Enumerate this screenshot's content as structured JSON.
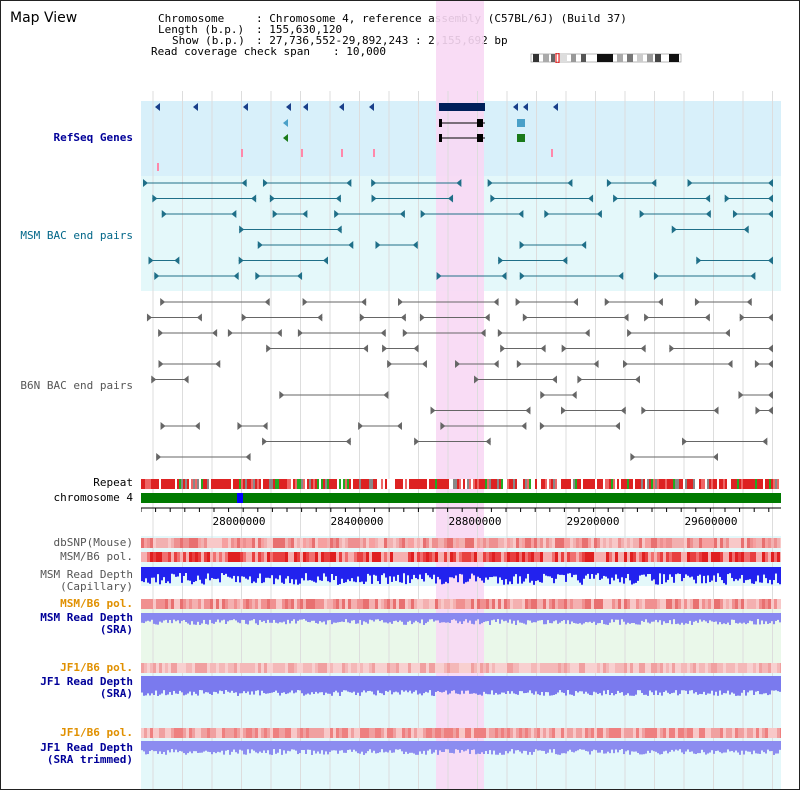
{
  "title": "Map View",
  "info": {
    "chromosome_label": "Chromosome",
    "chromosome_value": ": Chromosome 4, reference assembly (C57BL/6J) (Build 37)",
    "length_label": "Length (b.p.)",
    "length_value": ": 155,630,120",
    "show_label": "Show (b.p.)",
    "show_value": ": 27,736,552-29,892,243 : 2,155,692 bp",
    "coverage_label": "Read coverage check span",
    "coverage_value": ": 10,000"
  },
  "tracks": {
    "refseq": "RefSeq Genes",
    "msm_bac": "MSM BAC end pairs",
    "b6n_bac": "B6N BAC end pairs",
    "repeat": "Repeat",
    "chromosome": "chromosome 4",
    "dbsnp": "dbSNP(Mouse)",
    "msm_b6_pol_1": "MSM/B6 pol.",
    "msm_read_depth_cap": "MSM Read Depth\n(Capillary)",
    "msm_b6_pol_2": "MSM/B6 pol.",
    "msm_read_depth_sra": "MSM Read Depth\n(SRA)",
    "jf1_b6_pol_1": "JF1/B6 pol.",
    "jf1_read_depth_sra": "JF1 Read Depth\n(SRA)",
    "jf1_b6_pol_2": "JF1/B6 pol.",
    "jf1_read_depth_trim": "JF1 Read Depth\n(SRA trimmed)"
  },
  "axis_ticks": [
    "28000000",
    "28400000",
    "28800000",
    "29200000",
    "29600000"
  ],
  "colors": {
    "highlight": "#f8d8f4",
    "refseq_bg": "#d8f0fa",
    "msm_bg": "#e0f8fa",
    "chrom_green": "#007a00",
    "depth_blue": "#2222ee",
    "sra_blue": "#8888f0"
  }
}
